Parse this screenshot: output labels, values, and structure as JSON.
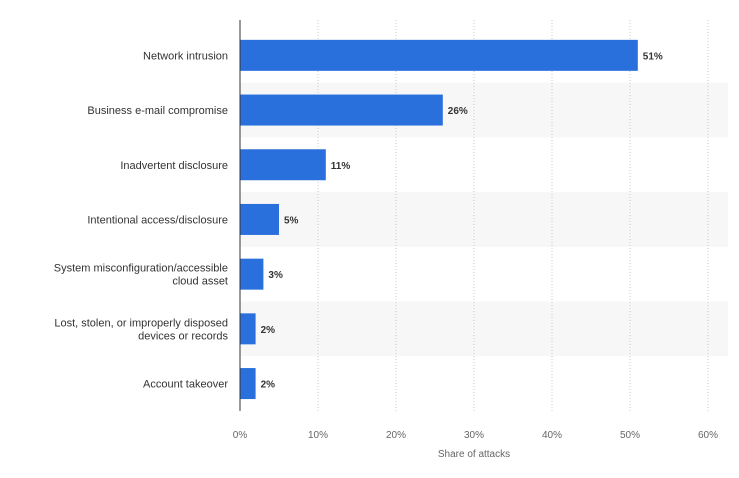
{
  "chart_data": {
    "type": "bar",
    "orientation": "horizontal",
    "categories": [
      [
        "Network intrusion"
      ],
      [
        "Business e-mail compromise"
      ],
      [
        "Inadvertent disclosure"
      ],
      [
        "Intentional access/disclosure"
      ],
      [
        "System misconfiguration/accessible",
        "cloud asset"
      ],
      [
        "Lost, stolen, or improperly disposed",
        "devices or records"
      ],
      [
        "Account takeover"
      ]
    ],
    "values": [
      51,
      26,
      11,
      5,
      3,
      2,
      2
    ],
    "value_labels": [
      "51%",
      "26%",
      "11%",
      "5%",
      "3%",
      "2%",
      "2%"
    ],
    "xlabel": "Share of attacks",
    "ylabel": "",
    "title": "",
    "xlim": [
      0,
      60
    ],
    "ticks": [
      0,
      10,
      20,
      30,
      40,
      50,
      60
    ],
    "tick_labels": [
      "0%",
      "10%",
      "20%",
      "30%",
      "40%",
      "50%",
      "60%"
    ],
    "grid": true,
    "legend": "none",
    "colors": {
      "bar": "#2a70dc",
      "band": "#f7f7f7",
      "grid": "#c9c9c9",
      "axis": "#333333"
    }
  }
}
